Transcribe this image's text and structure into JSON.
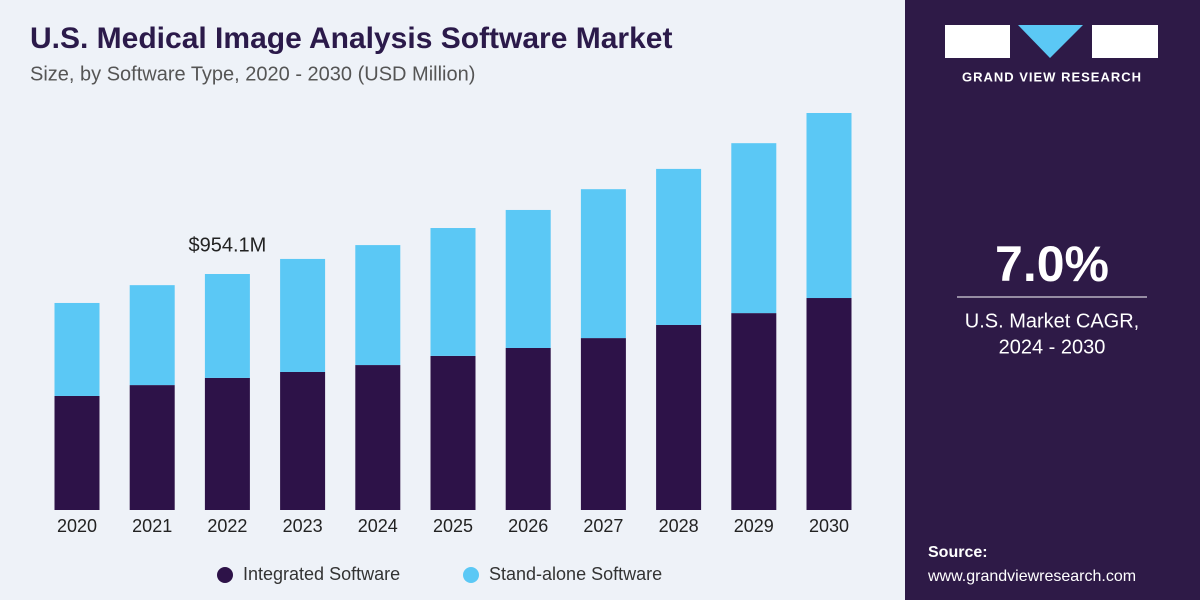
{
  "chart_data": {
    "type": "stacked-bar",
    "title": "U.S. Medical Image Analysis Software Market",
    "subtitle": "Size, by Software Type, 2020 - 2030 (USD Million)",
    "categories": [
      "2020",
      "2021",
      "2022",
      "2023",
      "2024",
      "2025",
      "2026",
      "2027",
      "2028",
      "2029",
      "2030"
    ],
    "series": [
      {
        "name": "Integrated Software",
        "color": "#2d1248",
        "values": [
          461,
          505,
          534.0,
          558,
          586,
          623,
          655,
          695,
          748,
          796,
          857
        ]
      },
      {
        "name": "Stand-alone Software",
        "color": "#5bc8f5",
        "values": [
          376,
          404,
          420.1,
          457,
          485,
          517,
          558,
          602,
          631,
          687,
          748
        ]
      }
    ],
    "annotations": [
      {
        "category": "2022",
        "label": "$954.1M",
        "value": 954.1
      }
    ]
  },
  "sidebar": {
    "brand": "GRAND VIEW RESEARCH",
    "cagr": "7.0%",
    "cagr_caption": [
      "U.S. Market CAGR,",
      "2024 - 2030"
    ],
    "source_label": "Source:",
    "source_url": "www.grandviewresearch.com"
  }
}
